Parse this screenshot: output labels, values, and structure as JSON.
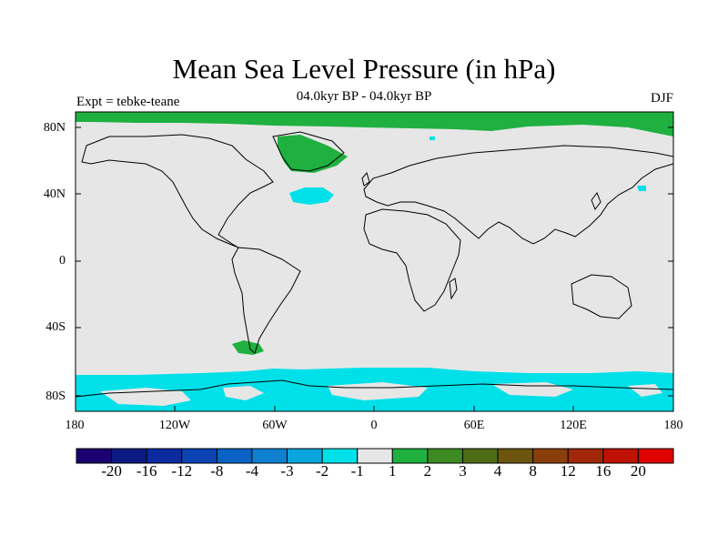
{
  "title": "Mean Sea Level Pressure (in hPa)",
  "subtitle": "04.0kyr BP - 04.0kyr BP",
  "left_label": "Expt = tebke-teane",
  "right_label": "DJF",
  "lat_ticks": [
    "80N",
    "40N",
    "0",
    "40S",
    "80S"
  ],
  "lon_ticks": [
    "180",
    "120W",
    "60W",
    "0",
    "60E",
    "120E",
    "180"
  ],
  "colorbar": {
    "colors": [
      "#1a0070",
      "#0c1a82",
      "#0a2a9e",
      "#0c45b3",
      "#0a63c4",
      "#0f80cf",
      "#0aa5dc",
      "#00e0e8",
      "#e6e6e6",
      "#1fb040",
      "#3c8a22",
      "#4f6b15",
      "#6d5510",
      "#8a3f0a",
      "#a02808",
      "#bf1205",
      "#e00000"
    ],
    "labels": [
      "-20",
      "-16",
      "-12",
      "-8",
      "-4",
      "-3",
      "-2",
      "-1",
      "1",
      "2",
      "3",
      "4",
      "8",
      "12",
      "16",
      "20"
    ]
  },
  "map": {
    "background_color": "#e6e6e6",
    "positive_color": "#1fb040",
    "negative_color": "#00e0e8"
  }
}
